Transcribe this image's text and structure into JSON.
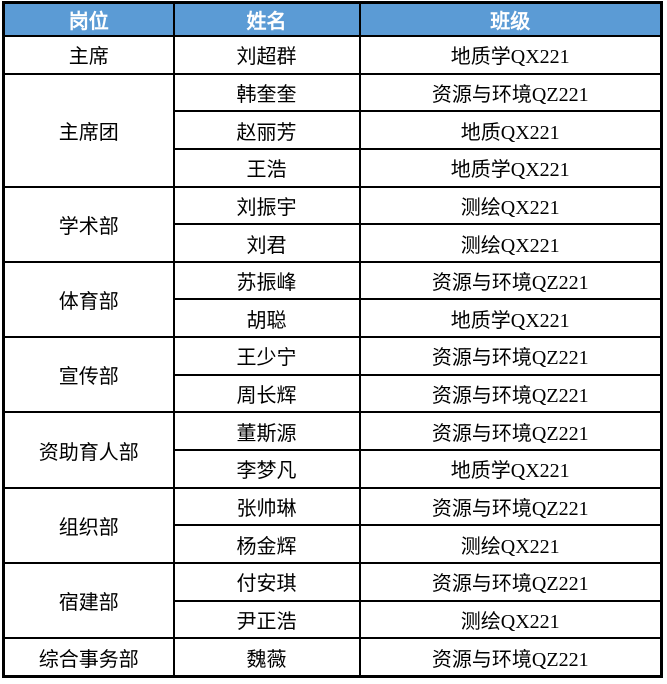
{
  "table": {
    "headers": [
      "岗位",
      "姓名",
      "班级"
    ],
    "colors": {
      "header_background": "#5B9BD5",
      "header_text": "#FFFFFF",
      "border": "#000000",
      "body_text": "#000000"
    },
    "groups": [
      {
        "position": "主席",
        "members": [
          {
            "name": "刘超群",
            "class": "地质学QX221"
          }
        ]
      },
      {
        "position": "主席团",
        "members": [
          {
            "name": "韩奎奎",
            "class": "资源与环境QZ221"
          },
          {
            "name": "赵丽芳",
            "class": "地质QX221"
          },
          {
            "name": "王浩",
            "class": "地质学QX221"
          }
        ]
      },
      {
        "position": "学术部",
        "members": [
          {
            "name": "刘振宇",
            "class": "测绘QX221"
          },
          {
            "name": "刘君",
            "class": "测绘QX221"
          }
        ]
      },
      {
        "position": "体育部",
        "members": [
          {
            "name": "苏振峰",
            "class": "资源与环境QZ221"
          },
          {
            "name": "胡聪",
            "class": "地质学QX221"
          }
        ]
      },
      {
        "position": "宣传部",
        "members": [
          {
            "name": "王少宁",
            "class": "资源与环境QZ221"
          },
          {
            "name": "周长辉",
            "class": "资源与环境QZ221"
          }
        ]
      },
      {
        "position": "资助育人部",
        "members": [
          {
            "name": "董斯源",
            "class": "资源与环境QZ221"
          },
          {
            "name": "李梦凡",
            "class": "地质学QX221"
          }
        ]
      },
      {
        "position": "组织部",
        "members": [
          {
            "name": "张帅琳",
            "class": "资源与环境QZ221"
          },
          {
            "name": "杨金辉",
            "class": "测绘QX221"
          }
        ]
      },
      {
        "position": "宿建部",
        "members": [
          {
            "name": "付安琪",
            "class": "资源与环境QZ221"
          },
          {
            "name": "尹正浩",
            "class": "测绘QX221"
          }
        ]
      },
      {
        "position": "综合事务部",
        "members": [
          {
            "name": "魏薇",
            "class": "资源与环境QZ221"
          }
        ]
      }
    ]
  }
}
